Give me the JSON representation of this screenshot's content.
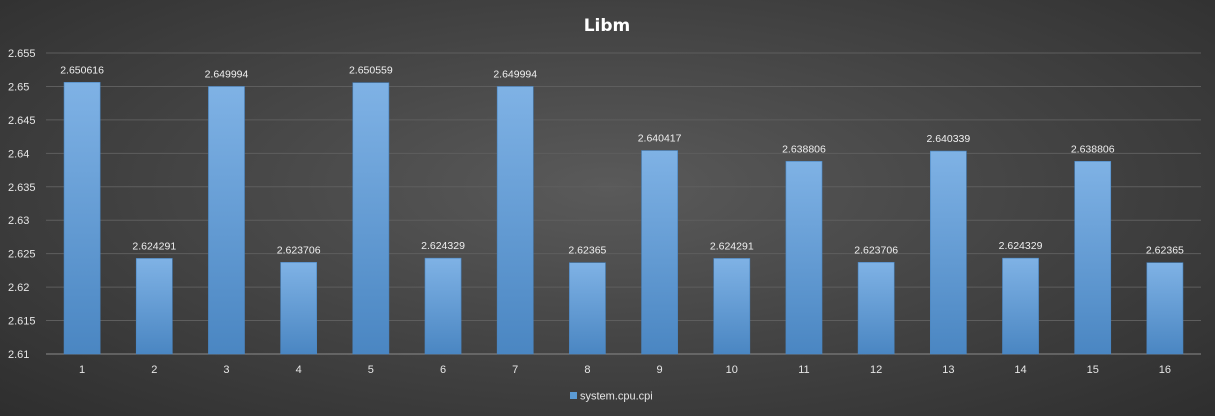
{
  "chart_data": {
    "type": "bar",
    "title": "Libm",
    "xlabel": "",
    "ylabel": "",
    "categories": [
      "1",
      "2",
      "3",
      "4",
      "5",
      "6",
      "7",
      "8",
      "9",
      "10",
      "11",
      "12",
      "13",
      "14",
      "15",
      "16"
    ],
    "series": [
      {
        "name": "system.cpu.cpi",
        "values": [
          2.650616,
          2.624291,
          2.649994,
          2.623706,
          2.650559,
          2.624329,
          2.649994,
          2.62365,
          2.640417,
          2.624291,
          2.638806,
          2.623706,
          2.640339,
          2.624329,
          2.638806,
          2.62365
        ]
      }
    ],
    "data_labels": [
      "2.650616",
      "2.624291",
      "2.649994",
      "2.623706",
      "2.650559",
      "2.624329",
      "2.649994",
      "2.62365",
      "2.640417",
      "2.624291",
      "2.638806",
      "2.623706",
      "2.640339",
      "2.624329",
      "2.638806",
      "2.62365"
    ],
    "ylim": [
      2.61,
      2.655
    ],
    "yticks": [
      "2.61",
      "2.615",
      "2.62",
      "2.625",
      "2.63",
      "2.635",
      "2.64",
      "2.645",
      "2.65",
      "2.655"
    ],
    "grid": true,
    "legend": "bottom",
    "colors": {
      "bar": "#5b9bd5",
      "bar_light": "#7fb2e5",
      "bar_dark": "#4a86c2",
      "grid": "#5e5e5e",
      "axis": "#8a8a8a"
    }
  }
}
